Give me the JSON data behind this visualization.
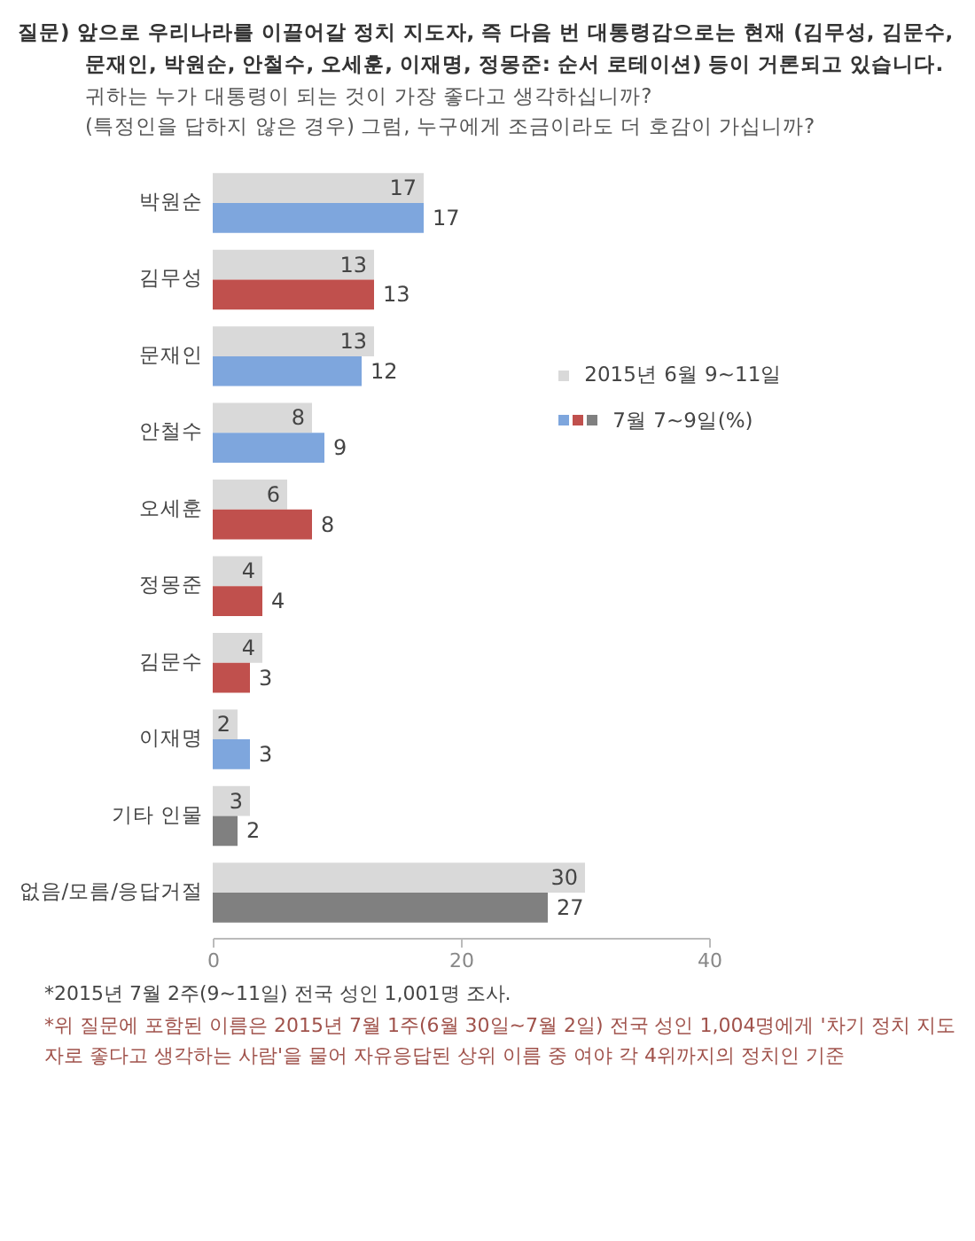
{
  "chart_data": {
    "type": "bar",
    "orientation": "horizontal",
    "title": "질문) 앞으로 우리나라를 이끌어갈 정치 지도자, 즉 다음 번 대통령감으로는 현재 (김무성, 김문수, 문재인, 박원순, 안철수, 오세훈, 이재명, 정몽준: 순서 로테이션) 등이 거론되고 있습니다.",
    "subtitle": "귀하는 누가 대통령이 되는 것이 가장 좋다고 생각하십니까?\n(특정인을 답하지 않은 경우) 그럼, 누구에게 조금이라도 더 호감이 가십니까?",
    "categories": [
      "박원순",
      "김무성",
      "문재인",
      "안철수",
      "오세훈",
      "정몽준",
      "김문수",
      "이재명",
      "기타 인물",
      "없음/모름/응답거절"
    ],
    "series": [
      {
        "name": "2015년 6월 9~11일",
        "color": "#d9d9d9",
        "values": [
          17,
          13,
          13,
          8,
          6,
          4,
          4,
          2,
          3,
          30
        ]
      },
      {
        "name": "7월 7~9일(%)",
        "colors": [
          "#7ea6dd",
          "#c0504d",
          "#7ea6dd",
          "#7ea6dd",
          "#c0504d",
          "#c0504d",
          "#c0504d",
          "#7ea6dd",
          "#808080",
          "#808080"
        ],
        "values": [
          17,
          13,
          12,
          9,
          8,
          4,
          3,
          3,
          2,
          27
        ]
      }
    ],
    "xlim": [
      0,
      40
    ],
    "xticks": [
      0,
      20,
      40
    ],
    "data_labels": true,
    "legend": "right",
    "annotations": [
      "*2015년 7월 2주(9~11일) 전국 성인 1,001명 조사.",
      "*위 질문에 포함된 이름은 2015년 7월 1주(6월 30일~7월 2일) 전국 성인 1,004명에게 '차기 정치 지도자로 좋다고 생각하는 사람'을 물어 자유응답된 상위 이름 중 여야 각 4위까지의 정치인 기준"
    ]
  }
}
